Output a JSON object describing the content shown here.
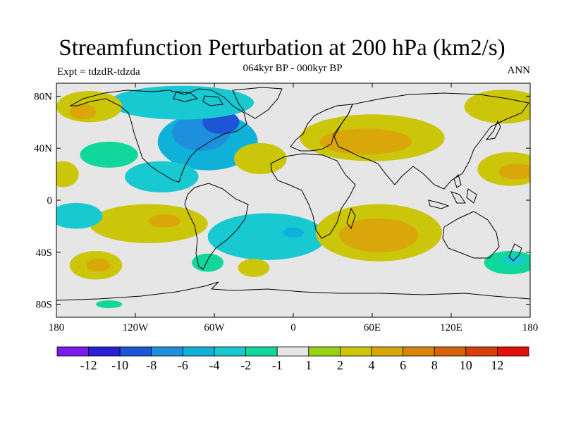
{
  "title": "Streamfunction Perturbation at 200 hPa (km2/s)",
  "subtitle": "064kyr BP - 000kyr BP",
  "left_label": "Expt = tdzdR-tdzda",
  "right_label": "ANN",
  "chart_data": {
    "type": "heatmap",
    "projection": "cylindrical-equidistant",
    "x_range": [
      -180,
      180
    ],
    "y_range": [
      -90,
      90
    ],
    "x_ticks": [
      {
        "value": -180,
        "label": "180"
      },
      {
        "value": -120,
        "label": "120W"
      },
      {
        "value": -60,
        "label": "60W"
      },
      {
        "value": 0,
        "label": "0"
      },
      {
        "value": 60,
        "label": "60E"
      },
      {
        "value": 120,
        "label": "120E"
      },
      {
        "value": 180,
        "label": "180"
      }
    ],
    "y_ticks": [
      {
        "value": 80,
        "label": "80N"
      },
      {
        "value": 40,
        "label": "40N"
      },
      {
        "value": 0,
        "label": "0"
      },
      {
        "value": -40,
        "label": "40S"
      },
      {
        "value": -80,
        "label": "80S"
      }
    ],
    "colorbar": {
      "colors": [
        "#7a1ae6",
        "#2b1fd6",
        "#1c55d6",
        "#1d8fdc",
        "#10b1d9",
        "#18c9d2",
        "#10d79b",
        "#e6e6e6",
        "#98d215",
        "#cbc60a",
        "#d9a70a",
        "#d9840a",
        "#d6620a",
        "#d6400a",
        "#e0100a"
      ],
      "labels": [
        "-12",
        "-10",
        "-8",
        "-6",
        "-4",
        "-2",
        "-1",
        "1",
        "2",
        "4",
        "6",
        "8",
        "10",
        "12"
      ],
      "label_boundaries": [
        1,
        2,
        3,
        4,
        5,
        6,
        7,
        8,
        9,
        10,
        11,
        12,
        13,
        14
      ]
    },
    "field_regions": [
      {
        "name": "north-america-low",
        "lon": -65,
        "lat": 45,
        "rx": 38,
        "ry": 22,
        "level": 4
      },
      {
        "name": "north-america-core",
        "lon": -70,
        "lat": 52,
        "rx": 22,
        "ry": 14,
        "level": 3
      },
      {
        "name": "labrador-core",
        "lon": -55,
        "lat": 60,
        "rx": 14,
        "ry": 9,
        "level": 2
      },
      {
        "name": "arctic-low",
        "lon": -85,
        "lat": 75,
        "rx": 55,
        "ry": 13,
        "level": 5
      },
      {
        "name": "caribbean-low",
        "lon": -100,
        "lat": 18,
        "rx": 28,
        "ry": 12,
        "level": 5
      },
      {
        "name": "east-pacific-low",
        "lon": -140,
        "lat": 35,
        "rx": 22,
        "ry": 10,
        "level": 6
      },
      {
        "name": "north-pacific-high",
        "lon": -155,
        "lat": 72,
        "rx": 25,
        "ry": 12,
        "level": 9
      },
      {
        "name": "north-pacific-high-core",
        "lon": -160,
        "lat": 68,
        "rx": 10,
        "ry": 6,
        "level": 10
      },
      {
        "name": "northeast-atlantic-high",
        "lon": -25,
        "lat": 32,
        "rx": 20,
        "ry": 12,
        "level": 9
      },
      {
        "name": "central-asia-high",
        "lon": 60,
        "lat": 48,
        "rx": 55,
        "ry": 18,
        "level": 9
      },
      {
        "name": "central-asia-high-core",
        "lon": 55,
        "lat": 45,
        "rx": 35,
        "ry": 10,
        "level": 10
      },
      {
        "name": "far-east-high",
        "lon": 160,
        "lat": 72,
        "rx": 30,
        "ry": 13,
        "level": 9
      },
      {
        "name": "west-pacific-high",
        "lon": 165,
        "lat": 24,
        "rx": 25,
        "ry": 13,
        "level": 9
      },
      {
        "name": "west-pacific-high-core",
        "lon": 170,
        "lat": 22,
        "rx": 14,
        "ry": 6,
        "level": 10
      },
      {
        "name": "date-line-high",
        "lon": -175,
        "lat": 20,
        "rx": 12,
        "ry": 10,
        "level": 9
      },
      {
        "name": "tropical-belt-low",
        "lon": 90,
        "lat": 5,
        "rx": 90,
        "ry": 10,
        "level": 7
      },
      {
        "name": "african-tropics-low",
        "lon": 25,
        "lat": 10,
        "rx": 30,
        "ry": 12,
        "level": 7
      },
      {
        "name": "south-pacific-high",
        "lon": -110,
        "lat": -18,
        "rx": 45,
        "ry": 15,
        "level": 9
      },
      {
        "name": "south-pacific-high-core",
        "lon": -98,
        "lat": -16,
        "rx": 12,
        "ry": 5,
        "level": 10
      },
      {
        "name": "south-america-low",
        "lon": -20,
        "lat": -28,
        "rx": 45,
        "ry": 18,
        "level": 5
      },
      {
        "name": "south-america-low-core",
        "lon": 0,
        "lat": -25,
        "rx": 8,
        "ry": 4,
        "level": 4
      },
      {
        "name": "tropical-pacific-low",
        "lon": -165,
        "lat": -12,
        "rx": 20,
        "ry": 10,
        "level": 5
      },
      {
        "name": "indian-ocean-high",
        "lon": 65,
        "lat": -25,
        "rx": 48,
        "ry": 22,
        "level": 9
      },
      {
        "name": "indian-ocean-high-core",
        "lon": 65,
        "lat": -27,
        "rx": 30,
        "ry": 13,
        "level": 10
      },
      {
        "name": "australia-low",
        "lon": 135,
        "lat": -20,
        "rx": 20,
        "ry": 12,
        "level": 7
      },
      {
        "name": "south-pacific-low",
        "lon": 165,
        "lat": -48,
        "rx": 20,
        "ry": 9,
        "level": 6
      },
      {
        "name": "south-pacific-low-core",
        "lon": 168,
        "lat": -46,
        "rx": 9,
        "ry": 4,
        "level": 5
      },
      {
        "name": "southern-ocean-high",
        "lon": -150,
        "lat": -50,
        "rx": 20,
        "ry": 11,
        "level": 9
      },
      {
        "name": "southern-ocean-high-core",
        "lon": -148,
        "lat": -50,
        "rx": 9,
        "ry": 5,
        "level": 10
      },
      {
        "name": "south-atlantic-high",
        "lon": -30,
        "lat": -52,
        "rx": 12,
        "ry": 7,
        "level": 9
      },
      {
        "name": "south-atlantic-low",
        "lon": -65,
        "lat": -48,
        "rx": 12,
        "ry": 7,
        "level": 6
      },
      {
        "name": "pacific-south-low",
        "lon": -140,
        "lat": -80,
        "rx": 10,
        "ry": 3,
        "level": 6
      }
    ]
  }
}
